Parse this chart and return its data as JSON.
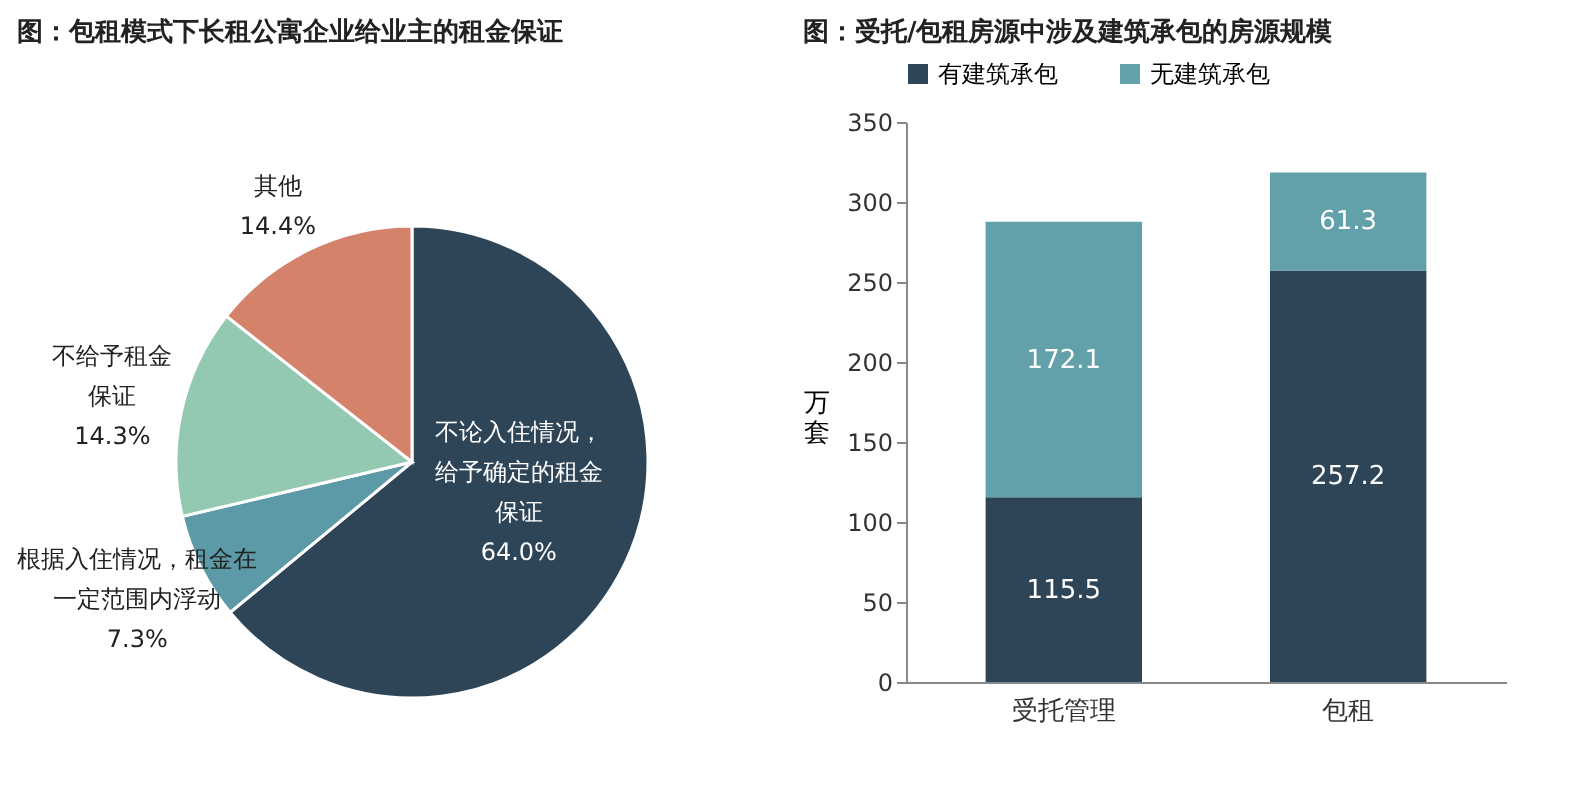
{
  "chart_data": [
    {
      "type": "pie",
      "title": "图：包租模式下长租公寓企业给业主的租金保证",
      "categories": [
        "不论入住情况，给予确定的租金保证",
        "根据入住情况，租金在一定范围内浮动",
        "不给予租金保证",
        "其他"
      ],
      "values": [
        64.0,
        7.3,
        14.3,
        14.4
      ],
      "value_labels": [
        "64.0%",
        "7.3%",
        "14.3%",
        "14.4%"
      ],
      "colors": [
        "#2e4457",
        "#5b9aa6",
        "#93c9b0",
        "#d4826a"
      ],
      "legend": false
    },
    {
      "type": "bar",
      "title": "图：受托/包租房源中涉及建筑承包的房源规模",
      "categories": [
        "受托管理",
        "包租"
      ],
      "stacked": true,
      "ylabel": "万套",
      "ylim": [
        0,
        350
      ],
      "yticks": [
        0,
        50,
        100,
        150,
        200,
        250,
        300,
        350
      ],
      "legend": "top",
      "grid": false,
      "data_labels": true,
      "series": [
        {
          "name": "有建筑承包",
          "color": "#2e4457",
          "values": [
            115.5,
            257.2
          ]
        },
        {
          "name": "无建筑承包",
          "color": "#62a0aa",
          "values": [
            172.1,
            61.3
          ]
        }
      ]
    }
  ]
}
